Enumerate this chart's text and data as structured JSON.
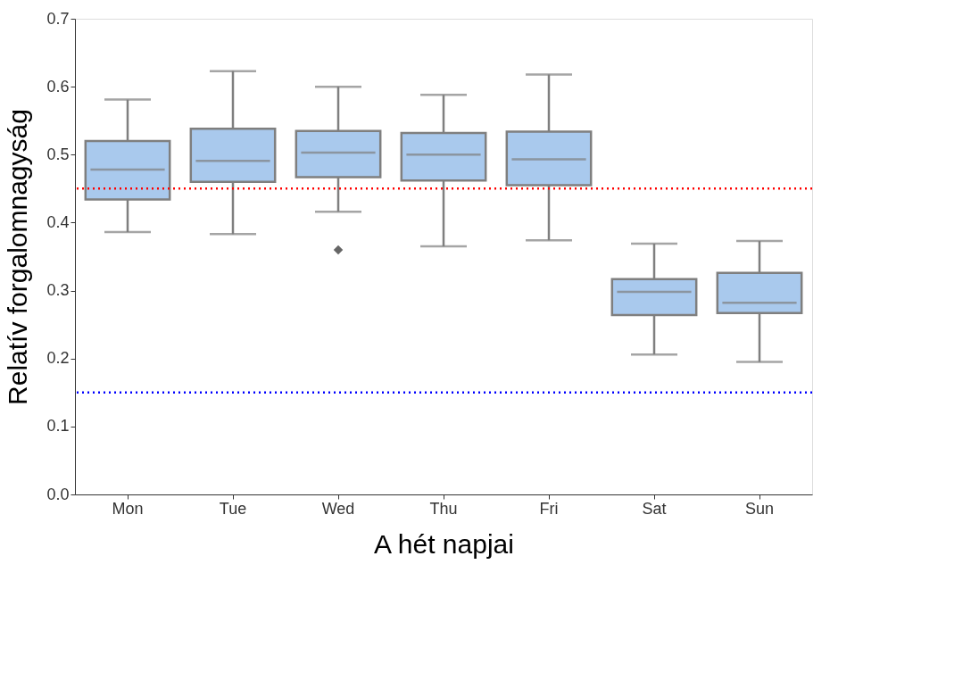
{
  "chart_data": {
    "type": "box",
    "xlabel": "A hét napjai",
    "ylabel": "Relatív forgalomnagyság",
    "categories": [
      "Mon",
      "Tue",
      "Wed",
      "Thu",
      "Fri",
      "Sat",
      "Sun"
    ],
    "series": [
      {
        "color": "#a9c9ed",
        "boxes": [
          {
            "low": 0.386,
            "q1": 0.434,
            "median": 0.478,
            "q3": 0.52,
            "high": 0.581
          },
          {
            "low": 0.383,
            "q1": 0.46,
            "median": 0.491,
            "q3": 0.538,
            "high": 0.623
          },
          {
            "low": 0.416,
            "q1": 0.467,
            "median": 0.503,
            "q3": 0.535,
            "high": 0.6,
            "outliers": [
              0.36
            ]
          },
          {
            "low": 0.365,
            "q1": 0.462,
            "median": 0.5,
            "q3": 0.532,
            "high": 0.588
          },
          {
            "low": 0.374,
            "q1": 0.455,
            "median": 0.493,
            "q3": 0.534,
            "high": 0.618
          },
          {
            "low": 0.206,
            "q1": 0.264,
            "median": 0.298,
            "q3": 0.317,
            "high": 0.369
          },
          {
            "low": 0.195,
            "q1": 0.267,
            "median": 0.282,
            "q3": 0.326,
            "high": 0.373
          }
        ]
      }
    ],
    "ylim": [
      0,
      0.7
    ],
    "yticks": [
      {
        "value": 0,
        "label": "0.0"
      },
      0.1,
      0.2,
      0.3,
      0.4,
      0.5,
      0.6,
      0.7
    ],
    "ref_lines": [
      {
        "axis": "y",
        "value": 0.45,
        "label": null,
        "color": "#ff0000",
        "line_style": "dotted"
      },
      {
        "axis": "y",
        "value": 0.15,
        "label": null,
        "color": "#0000ff",
        "line_style": "dotted"
      }
    ],
    "grid": false,
    "marker": "diamond"
  }
}
